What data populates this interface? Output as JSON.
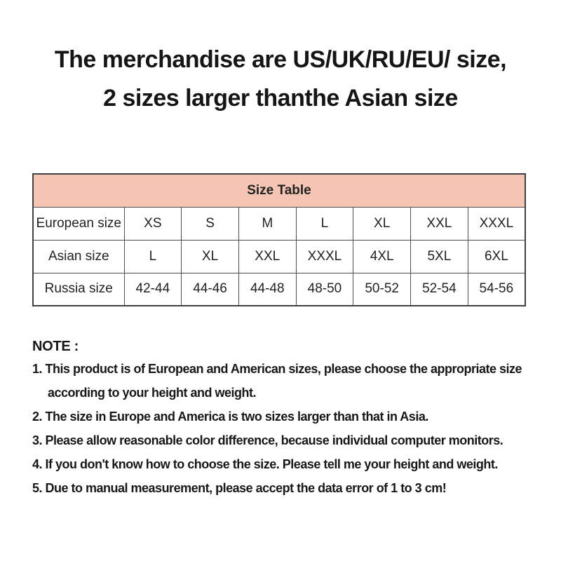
{
  "header": {
    "line1": "The merchandise are US/UK/RU/EU/ size,",
    "line2": "2 sizes larger thanthe Asian size"
  },
  "size_table": {
    "title": "Size Table",
    "rows": [
      {
        "label": "European size",
        "values": [
          "XS",
          "S",
          "M",
          "L",
          "XL",
          "XXL",
          "XXXL"
        ]
      },
      {
        "label": "Asian size",
        "values": [
          "L",
          "XL",
          "XXL",
          "XXXL",
          "4XL",
          "5XL",
          "6XL"
        ]
      },
      {
        "label": "Russia size",
        "values": [
          "42-44",
          "44-46",
          "44-48",
          "48-50",
          "50-52",
          "52-54",
          "54-56"
        ]
      }
    ]
  },
  "notes": {
    "heading": "NOTE :",
    "items": [
      {
        "line1": "1. This product is of European and American sizes, please choose the appropriate size",
        "line2": "according to your height and weight."
      },
      {
        "line1": "2. The size in Europe and America is two sizes larger than that in Asia."
      },
      {
        "line1": "3. Please allow reasonable color difference, because individual computer monitors."
      },
      {
        "line1": "4. If you don't know how to choose the size. Please tell me your height and weight."
      },
      {
        "line1": "5. Due to manual measurement, please accept the data error of 1 to 3 cm!"
      }
    ]
  },
  "colors": {
    "table_header_bg": "#f5c5b3",
    "table_border": "#4d4d4d",
    "text": "#1c1c1c"
  }
}
